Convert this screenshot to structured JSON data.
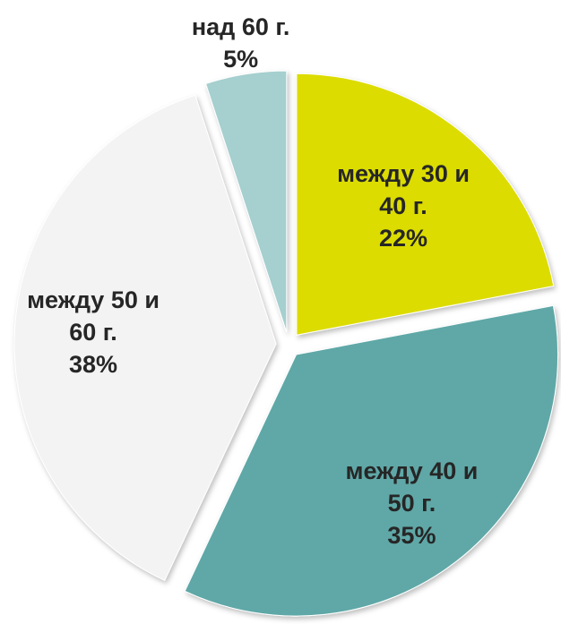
{
  "chart_data": {
    "type": "pie",
    "categories": [
      "между 30 и 40 г.",
      "между 40 и 50 г.",
      "между 50 и 60 г.",
      "над 60 г."
    ],
    "values": [
      22,
      35,
      38,
      5
    ],
    "value_labels": [
      "22%",
      "35%",
      "38%",
      "5%"
    ],
    "colors": [
      "#dcdc00",
      "#5fa8a7",
      "#f3f3f3",
      "#a6cfcf"
    ]
  }
}
